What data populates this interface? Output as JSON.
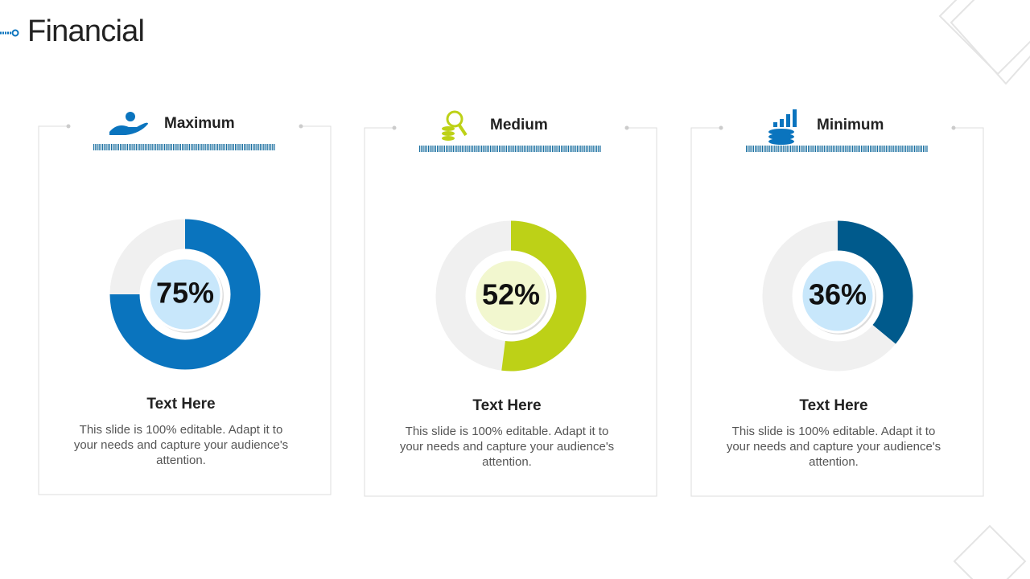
{
  "title": "Financial",
  "chart_data": [
    {
      "type": "donut",
      "title": "Maximum",
      "values": [
        75
      ],
      "value_labels": [
        "75%"
      ],
      "color": "#0a74be",
      "inner_color": "#c8e7fb",
      "heading": "Text Here",
      "description": "This slide is 100% editable. Adapt it to your needs and capture your audience's attention."
    },
    {
      "type": "donut",
      "title": "Medium",
      "values": [
        52
      ],
      "value_labels": [
        "52%"
      ],
      "color": "#bdd117",
      "inner_color": "#f2f7cf",
      "heading": "Text Here",
      "description": "This slide is 100% editable. Adapt it to your needs and capture your audience's attention."
    },
    {
      "type": "donut",
      "title": "Minimum",
      "values": [
        36
      ],
      "value_labels": [
        "36%"
      ],
      "color": "#005a8c",
      "inner_color": "#c8e7fb",
      "heading": "Text Here",
      "description": "This slide is 100% editable. Adapt it to your needs and capture your audience's attention."
    }
  ]
}
